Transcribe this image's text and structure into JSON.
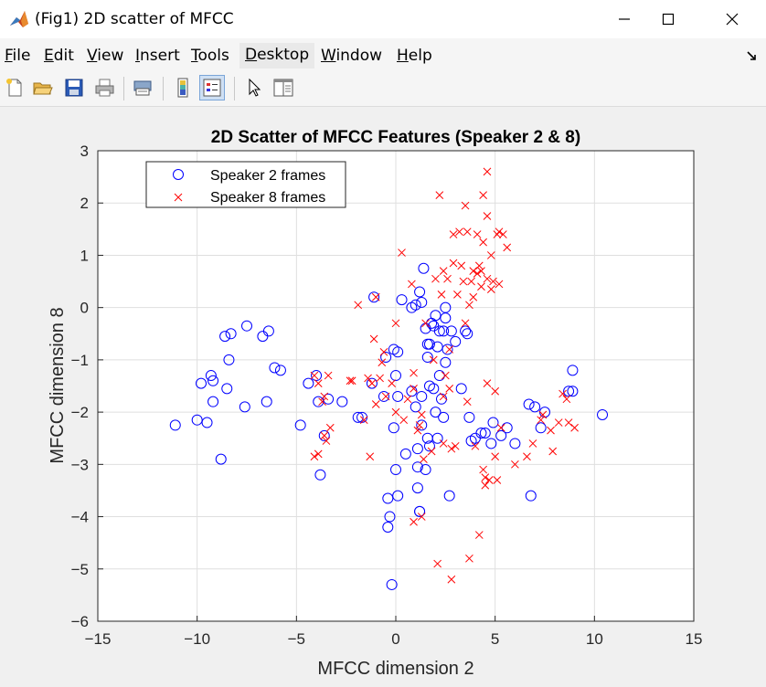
{
  "window": {
    "title": "(Fig1) 2D scatter of MFCC"
  },
  "menu": {
    "items": [
      {
        "label": "File",
        "u": "F",
        "rest": "ile"
      },
      {
        "label": "Edit",
        "u": "E",
        "rest": "dit"
      },
      {
        "label": "View",
        "u": "V",
        "rest": "iew"
      },
      {
        "label": "Insert",
        "u": "I",
        "rest": "nsert"
      },
      {
        "label": "Tools",
        "u": "T",
        "rest": "ools"
      },
      {
        "label": "Desktop",
        "u": "D",
        "rest": "esktop"
      },
      {
        "label": "Window",
        "u": "W",
        "rest": "indow"
      },
      {
        "label": "Help",
        "u": "H",
        "rest": "elp"
      }
    ]
  },
  "toolbar": {
    "icons": [
      "new-file-icon",
      "open-folder-icon",
      "save-icon",
      "print-icon",
      "print-preview-icon",
      "colorbar-icon",
      "legend-icon",
      "pointer-icon",
      "property-editor-icon"
    ]
  },
  "chart_data": {
    "type": "scatter",
    "title": "2D Scatter of MFCC Features (Speaker 2 & 8)",
    "xlabel": "MFCC dimension 2",
    "ylabel": "MFCC dimension 8",
    "xlim": [
      -15,
      15
    ],
    "ylim": [
      -6,
      3
    ],
    "xticks": [
      -15,
      -10,
      -5,
      0,
      5,
      10,
      15
    ],
    "yticks": [
      -6,
      -5,
      -4,
      -3,
      -2,
      -1,
      0,
      1,
      2,
      3
    ],
    "grid": true,
    "legend": "top-left",
    "series": [
      {
        "name": "Speaker 2 frames",
        "marker": "circle",
        "color": "#0000ff",
        "points": [
          [
            -11.1,
            -2.25
          ],
          [
            -10.0,
            -2.15
          ],
          [
            -9.8,
            -1.45
          ],
          [
            -9.5,
            -2.2
          ],
          [
            -9.3,
            -1.3
          ],
          [
            -9.2,
            -1.4
          ],
          [
            -9.2,
            -1.8
          ],
          [
            -8.8,
            -2.9
          ],
          [
            -8.6,
            -0.55
          ],
          [
            -8.5,
            -1.55
          ],
          [
            -8.3,
            -0.5
          ],
          [
            -8.4,
            -1.0
          ],
          [
            -7.5,
            -0.35
          ],
          [
            -7.6,
            -1.9
          ],
          [
            -6.7,
            -0.55
          ],
          [
            -6.4,
            -0.45
          ],
          [
            -6.5,
            -1.8
          ],
          [
            -6.1,
            -1.15
          ],
          [
            -5.8,
            -1.2
          ],
          [
            -4.8,
            -2.25
          ],
          [
            -4.4,
            -1.45
          ],
          [
            -4.0,
            -1.3
          ],
          [
            -3.9,
            -1.8
          ],
          [
            -3.6,
            -2.45
          ],
          [
            -3.8,
            -3.2
          ],
          [
            -3.4,
            -1.75
          ],
          [
            -2.7,
            -1.8
          ],
          [
            -1.9,
            -2.1
          ],
          [
            -1.7,
            -2.1
          ],
          [
            -1.1,
            0.2
          ],
          [
            -1.2,
            -1.45
          ],
          [
            -0.5,
            -0.95
          ],
          [
            -0.6,
            -1.7
          ],
          [
            -0.4,
            -3.65
          ],
          [
            -0.4,
            -4.2
          ],
          [
            -0.3,
            -4.0
          ],
          [
            -0.2,
            -5.3
          ],
          [
            -0.1,
            -2.3
          ],
          [
            -0.1,
            -0.8
          ],
          [
            0.0,
            -1.3
          ],
          [
            0.0,
            -3.1
          ],
          [
            0.1,
            -1.7
          ],
          [
            0.1,
            -3.6
          ],
          [
            0.1,
            -0.85
          ],
          [
            0.3,
            0.15
          ],
          [
            0.5,
            -2.8
          ],
          [
            0.8,
            0.0
          ],
          [
            0.8,
            -1.6
          ],
          [
            1.0,
            0.05
          ],
          [
            1.0,
            -1.9
          ],
          [
            1.1,
            -2.7
          ],
          [
            1.1,
            -3.05
          ],
          [
            1.1,
            -3.45
          ],
          [
            1.2,
            -3.9
          ],
          [
            1.2,
            -3.9
          ],
          [
            1.2,
            0.3
          ],
          [
            1.3,
            0.1
          ],
          [
            1.3,
            -1.7
          ],
          [
            1.3,
            -2.25
          ],
          [
            1.4,
            0.75
          ],
          [
            1.5,
            -0.4
          ],
          [
            1.5,
            -3.1
          ],
          [
            1.6,
            -0.7
          ],
          [
            1.6,
            -0.95
          ],
          [
            1.6,
            -2.5
          ],
          [
            1.7,
            -2.65
          ],
          [
            1.7,
            -1.5
          ],
          [
            1.7,
            -0.7
          ],
          [
            1.8,
            -0.3
          ],
          [
            1.9,
            -0.35
          ],
          [
            1.9,
            -1.55
          ],
          [
            2.0,
            -0.15
          ],
          [
            2.0,
            -2.0
          ],
          [
            2.1,
            -2.5
          ],
          [
            2.1,
            -0.75
          ],
          [
            2.2,
            -0.45
          ],
          [
            2.2,
            -1.3
          ],
          [
            2.3,
            -1.75
          ],
          [
            2.4,
            -0.45
          ],
          [
            2.4,
            -2.1
          ],
          [
            2.5,
            0.0
          ],
          [
            2.5,
            -0.2
          ],
          [
            2.5,
            -1.05
          ],
          [
            2.6,
            -0.8
          ],
          [
            2.7,
            -3.6
          ],
          [
            2.8,
            -0.45
          ],
          [
            3.0,
            -0.65
          ],
          [
            3.3,
            -1.55
          ],
          [
            3.5,
            -0.45
          ],
          [
            3.6,
            -0.5
          ],
          [
            3.7,
            -2.1
          ],
          [
            3.8,
            -2.55
          ],
          [
            4.0,
            -2.5
          ],
          [
            4.3,
            -2.4
          ],
          [
            4.5,
            -2.4
          ],
          [
            4.8,
            -2.6
          ],
          [
            4.9,
            -2.2
          ],
          [
            5.3,
            -2.45
          ],
          [
            5.6,
            -2.3
          ],
          [
            6.0,
            -2.6
          ],
          [
            6.7,
            -1.85
          ],
          [
            6.8,
            -3.6
          ],
          [
            7.0,
            -1.9
          ],
          [
            7.3,
            -2.3
          ],
          [
            7.5,
            -2.0
          ],
          [
            8.7,
            -1.6
          ],
          [
            8.9,
            -1.6
          ],
          [
            8.9,
            -1.2
          ],
          [
            10.4,
            -2.05
          ]
        ]
      },
      {
        "name": "Speaker 8 frames",
        "marker": "x",
        "color": "#ff0000",
        "points": [
          [
            -4.1,
            -1.3
          ],
          [
            -4.1,
            -2.85
          ],
          [
            -3.9,
            -1.45
          ],
          [
            -3.9,
            -2.8
          ],
          [
            -3.7,
            -1.8
          ],
          [
            -3.6,
            -2.45
          ],
          [
            -3.6,
            -1.7
          ],
          [
            -3.5,
            -2.55
          ],
          [
            -3.3,
            -2.3
          ],
          [
            -3.4,
            -1.3
          ],
          [
            -2.3,
            -1.4
          ],
          [
            -2.2,
            -1.4
          ],
          [
            -1.9,
            0.05
          ],
          [
            -1.6,
            -2.15
          ],
          [
            -1.4,
            -1.35
          ],
          [
            -1.3,
            -2.85
          ],
          [
            -1.2,
            -1.45
          ],
          [
            -1.1,
            -0.6
          ],
          [
            -1.0,
            -1.85
          ],
          [
            -1.0,
            0.2
          ],
          [
            -0.8,
            -1.35
          ],
          [
            -0.7,
            -1.05
          ],
          [
            -0.6,
            -0.85
          ],
          [
            -0.5,
            -1.7
          ],
          [
            -0.2,
            -1.45
          ],
          [
            0.0,
            -0.3
          ],
          [
            0.0,
            -2.0
          ],
          [
            0.3,
            1.05
          ],
          [
            0.4,
            -2.15
          ],
          [
            0.6,
            -1.75
          ],
          [
            0.8,
            0.45
          ],
          [
            0.9,
            -4.1
          ],
          [
            0.9,
            -1.25
          ],
          [
            0.9,
            -1.55
          ],
          [
            1.1,
            -2.35
          ],
          [
            1.2,
            -2.25
          ],
          [
            1.3,
            -2.05
          ],
          [
            1.3,
            -4.0
          ],
          [
            1.4,
            -2.9
          ],
          [
            1.5,
            -0.3
          ],
          [
            1.8,
            -2.75
          ],
          [
            1.9,
            -1.0
          ],
          [
            2.0,
            0.55
          ],
          [
            2.1,
            -4.9
          ],
          [
            2.2,
            2.15
          ],
          [
            2.3,
            0.25
          ],
          [
            2.4,
            0.7
          ],
          [
            2.4,
            -1.7
          ],
          [
            2.4,
            -2.6
          ],
          [
            2.5,
            -1.3
          ],
          [
            2.6,
            0.55
          ],
          [
            2.7,
            -0.8
          ],
          [
            2.7,
            -1.55
          ],
          [
            2.8,
            -2.7
          ],
          [
            2.9,
            0.85
          ],
          [
            2.8,
            -5.2
          ],
          [
            2.9,
            1.4
          ],
          [
            3.0,
            -2.65
          ],
          [
            3.1,
            0.25
          ],
          [
            3.2,
            1.45
          ],
          [
            3.3,
            0.8
          ],
          [
            3.4,
            0.5
          ],
          [
            3.5,
            -0.3
          ],
          [
            3.5,
            1.95
          ],
          [
            3.6,
            1.45
          ],
          [
            3.6,
            -1.8
          ],
          [
            3.7,
            -4.8
          ],
          [
            3.7,
            0.05
          ],
          [
            3.8,
            0.5
          ],
          [
            3.9,
            0.7
          ],
          [
            3.9,
            0.2
          ],
          [
            4.0,
            -2.65
          ],
          [
            4.1,
            1.4
          ],
          [
            4.1,
            0.65
          ],
          [
            4.2,
            -4.35
          ],
          [
            4.2,
            0.8
          ],
          [
            4.3,
            0.4
          ],
          [
            4.3,
            0.7
          ],
          [
            4.4,
            1.25
          ],
          [
            4.4,
            2.15
          ],
          [
            4.4,
            -3.1
          ],
          [
            4.5,
            -3.25
          ],
          [
            4.5,
            -3.4
          ],
          [
            4.6,
            0.55
          ],
          [
            4.6,
            1.75
          ],
          [
            4.6,
            -1.45
          ],
          [
            4.6,
            2.6
          ],
          [
            4.7,
            -3.3
          ],
          [
            4.8,
            0.35
          ],
          [
            4.8,
            1.0
          ],
          [
            4.9,
            0.5
          ],
          [
            5.0,
            -1.6
          ],
          [
            5.0,
            -2.85
          ],
          [
            5.1,
            -3.3
          ],
          [
            5.1,
            1.4
          ],
          [
            5.2,
            0.45
          ],
          [
            5.2,
            1.45
          ],
          [
            5.3,
            -2.3
          ],
          [
            5.4,
            1.4
          ],
          [
            5.6,
            1.15
          ],
          [
            6.0,
            -3.0
          ],
          [
            6.6,
            -2.85
          ],
          [
            6.9,
            -2.6
          ],
          [
            7.3,
            -2.15
          ],
          [
            7.4,
            -2.05
          ],
          [
            7.8,
            -2.35
          ],
          [
            7.9,
            -2.75
          ],
          [
            8.2,
            -2.2
          ],
          [
            8.4,
            -1.65
          ],
          [
            8.6,
            -1.75
          ],
          [
            8.7,
            -2.2
          ],
          [
            9.0,
            -2.3
          ]
        ]
      }
    ]
  }
}
